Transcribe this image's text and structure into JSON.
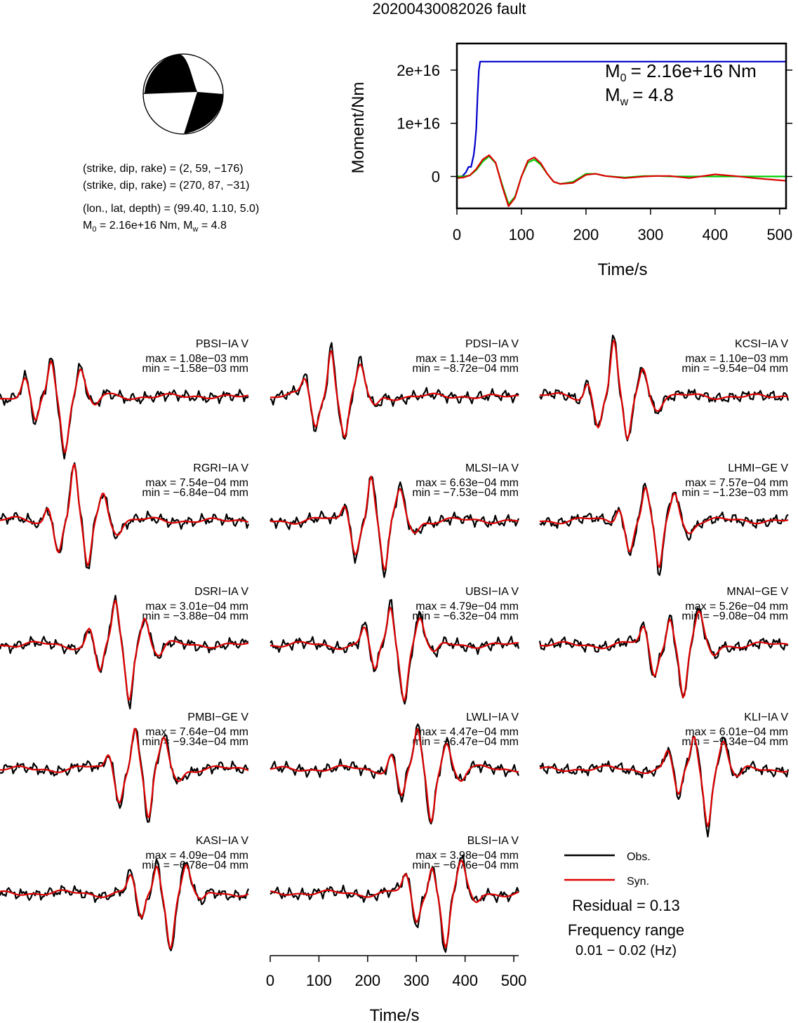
{
  "title": "20200430082026 fault",
  "info": {
    "line1": "(strike, dip, rake) = (2, 59, −176)",
    "line2": "(strike, dip, rake) = (270, 87, −31)",
    "line3": "(lon., lat, depth) = (99.40, 1.10, 5.0)",
    "m0_label": "M",
    "m0_sub": "0",
    "m0_value": " = 2.16e+16 Nm, M",
    "mw_sub": "w",
    "mw_value": " = 4.8"
  },
  "moment_chart": {
    "ylabel": "Moment/Nm",
    "xlabel": "Time/s",
    "m0_annotation": "= 2.16e+16 Nm",
    "mw_annotation": "= 4.8",
    "m0_letter": "M",
    "m0_sub": "0",
    "mw_letter": "M",
    "mw_sub": "w"
  },
  "legend": {
    "obs": "Obs.",
    "syn": "Syn.",
    "residual": "Residual = 0.13",
    "freq_title": "Frequency range",
    "freq_value": "0.01 − 0.02 (Hz)"
  },
  "colors": {
    "observed": "#000000",
    "synthetic": "#dd0000",
    "cumulative_moment": "#0000cc",
    "moment_rate": "#00cc00"
  },
  "chart_data": [
    {
      "type": "line",
      "xlabel": "Time/s",
      "ylabel": "Moment/Nm",
      "xlim": [
        0,
        510
      ],
      "ylim": [
        -6000000000000000.0,
        2.5e+16
      ],
      "xticks": [
        0,
        100,
        200,
        300,
        400,
        500
      ],
      "yticks": [
        0,
        1e+16,
        2e+16
      ],
      "ytick_labels": [
        "0",
        "1e+16",
        "2e+16"
      ],
      "series": [
        {
          "color": "blue",
          "x": [
            0,
            8,
            14,
            18,
            22,
            26,
            28,
            30,
            32,
            34,
            36,
            510
          ],
          "y": [
            0,
            0,
            800000000000000.0,
            1800000000000000.0,
            1800000000000000.0,
            4000000000000000.0,
            6000000000000000.0,
            9000000000000000.0,
            1.5e+16,
            2e+16,
            2.16e+16,
            2.16e+16
          ]
        },
        {
          "color": "green",
          "x": [
            0,
            10,
            20,
            30,
            40,
            50,
            60,
            70,
            80,
            90,
            100,
            110,
            120,
            130,
            140,
            150,
            160,
            180,
            200,
            215,
            230,
            260,
            290,
            310,
            330,
            360,
            400,
            430,
            460,
            510
          ],
          "y": [
            0,
            0,
            200000000000000.0,
            1200000000000000.0,
            2800000000000000.0,
            3800000000000000.0,
            2500000000000000.0,
            -1500000000000000.0,
            -5200000000000000.0,
            -3800000000000000.0,
            0,
            2600000000000000.0,
            3200000000000000.0,
            2200000000000000.0,
            500000000000000.0,
            -1000000000000000.0,
            -1400000000000000.0,
            -1000000000000000.0,
            500000000000000.0,
            500000000000000.0,
            100000000000000.0,
            -200000000000000.0,
            100000000000000.0,
            100000000000000.0,
            0,
            0,
            0,
            0,
            0,
            0
          ]
        },
        {
          "color": "red",
          "x": [
            0,
            10,
            20,
            30,
            40,
            50,
            60,
            70,
            80,
            90,
            100,
            110,
            120,
            130,
            140,
            150,
            160,
            180,
            200,
            215,
            230,
            260,
            290,
            310,
            330,
            360,
            400,
            430,
            460,
            490,
            510
          ],
          "y": [
            -300000000000000.0,
            -200000000000000.0,
            200000000000000.0,
            1400000000000000.0,
            3200000000000000.0,
            4000000000000000.0,
            2600000000000000.0,
            -1800000000000000.0,
            -5600000000000000.0,
            -4000000000000000.0,
            0,
            3000000000000000.0,
            3600000000000000.0,
            2500000000000000.0,
            500000000000000.0,
            -1000000000000000.0,
            -1400000000000000.0,
            -1200000000000000.0,
            300000000000000.0,
            500000000000000.0,
            100000000000000.0,
            -300000000000000.0,
            0,
            100000000000000.0,
            100000000000000.0,
            -300000000000000.0,
            400000000000000.0,
            100000000000000.0,
            -300000000000000.0,
            -600000000000000.0,
            -800000000000000.0
          ]
        }
      ]
    },
    {
      "type": "line",
      "xlabel": "Time/s",
      "xlim": [
        0,
        510
      ],
      "xticks": [
        0,
        100,
        200,
        300,
        400,
        500
      ],
      "panels": [
        {
          "station": "PBSI−IA V",
          "max": "max = 1.08e−03 mm",
          "min": "min = −1.58e−03 mm",
          "peak_time": 103,
          "max_amp": 0.00108,
          "min_amp": -0.00158
        },
        {
          "station": "PDSI−IA V",
          "max": "max = 1.14e−03 mm",
          "min": "min = −8.72e−04 mm",
          "peak_time": 123,
          "max_amp": 0.00114,
          "min_amp": -0.000872
        },
        {
          "station": "KCSI−IA V",
          "max": "max = 1.10e−03 mm",
          "min": "min = −9.54e−04 mm",
          "peak_time": 150,
          "max_amp": 0.0011,
          "min_amp": -0.000954
        },
        {
          "station": "RGRI−IA V",
          "max": "max = 7.54e−04 mm",
          "min": "min = −6.84e−04 mm",
          "peak_time": 150,
          "max_amp": 0.000754,
          "min_amp": -0.000684
        },
        {
          "station": "MLSI−IA V",
          "max": "max = 6.63e−04 mm",
          "min": "min = −7.53e−04 mm",
          "peak_time": 205,
          "max_amp": 0.000663,
          "min_amp": -0.000753
        },
        {
          "station": "LHMI−GE V",
          "max": "max = 7.57e−04 mm",
          "min": "min = −1.23e−03 mm",
          "peak_time": 215,
          "max_amp": 0.000757,
          "min_amp": -0.00123
        },
        {
          "station": "DSRI−IA V",
          "max": "max = 3.01e−04 mm",
          "min": "min = −3.88e−04 mm",
          "peak_time": 235,
          "max_amp": 0.000301,
          "min_amp": -0.000388
        },
        {
          "station": "UBSI−IA V",
          "max": "max = 4.79e−04 mm",
          "min": "min = −6.32e−04 mm",
          "peak_time": 245,
          "max_amp": 0.000479,
          "min_amp": -0.000632
        },
        {
          "station": "MNAI−GE V",
          "max": "max = 5.26e−04 mm",
          "min": "min = −9.08e−04 mm",
          "peak_time": 265,
          "max_amp": 0.000526,
          "min_amp": -0.000908
        },
        {
          "station": "PMBI−GE V",
          "max": "max = 7.64e−04 mm",
          "min": "min = −9.34e−04 mm",
          "peak_time": 275,
          "max_amp": 0.000764,
          "min_amp": -0.000934
        },
        {
          "station": "LWLI−IA V",
          "max": "max = 4.47e−04 mm",
          "min": "min = −6.47e−04 mm",
          "peak_time": 300,
          "max_amp": 0.000447,
          "min_amp": -0.000647
        },
        {
          "station": "KLI−IA V",
          "max": "max = 6.01e−04 mm",
          "min": "min = −9.34e−04 mm",
          "peak_time": 315,
          "max_amp": 0.000601,
          "min_amp": -0.000934
        },
        {
          "station": "KASI−IA V",
          "max": "max = 4.09e−04 mm",
          "min": "min = −6.78e−04 mm",
          "peak_time": 320,
          "max_amp": 0.000409,
          "min_amp": -0.000678
        },
        {
          "station": "BLSI−IA V",
          "max": "max = 3.98e−04 mm",
          "min": "min = −6.76e−04 mm",
          "peak_time": 330,
          "max_amp": 0.000398,
          "min_amp": -0.000676
        }
      ]
    }
  ]
}
